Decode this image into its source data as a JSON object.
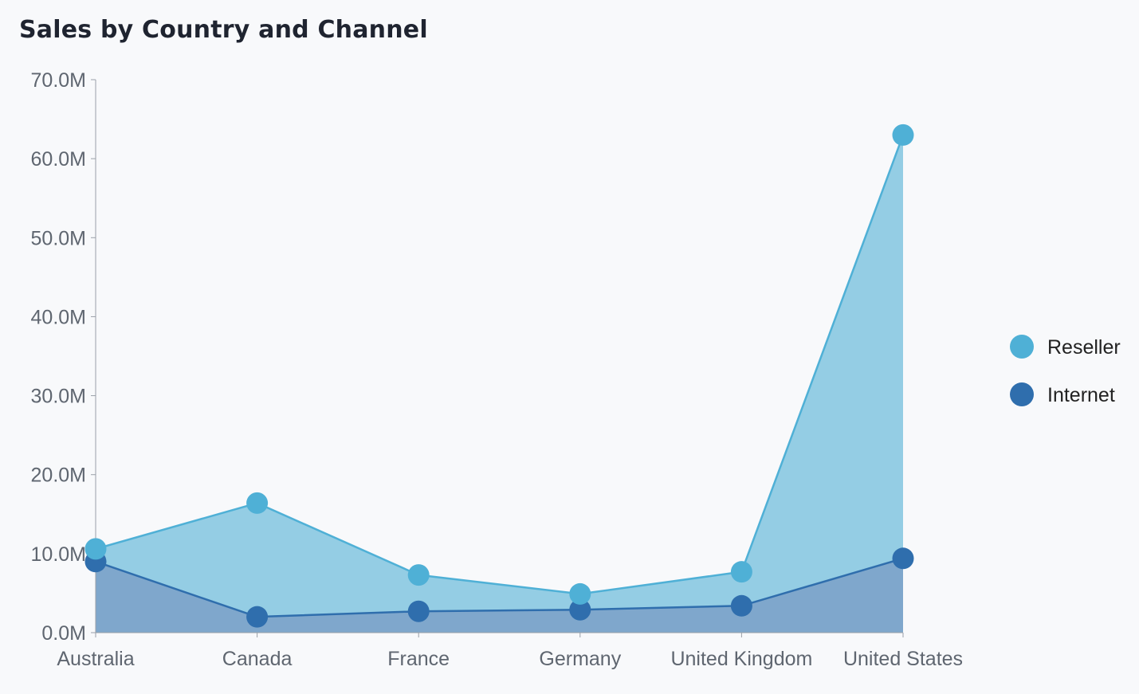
{
  "chart_data": {
    "type": "area",
    "title": "Sales by Country and Channel",
    "categories": [
      "Australia",
      "Canada",
      "France",
      "Germany",
      "United Kingdom",
      "United States"
    ],
    "series": [
      {
        "name": "Reseller",
        "color": "#4fb0d6",
        "fill": "#94cde4",
        "values": [
          10.6,
          16.4,
          7.3,
          4.9,
          7.7,
          63.0
        ]
      },
      {
        "name": "Internet",
        "color": "#2f6ead",
        "fill": "#7fa7cc",
        "values": [
          9.0,
          2.0,
          2.7,
          2.9,
          3.4,
          9.4
        ]
      }
    ],
    "y_ticks": [
      "0.0M",
      "10.0M",
      "20.0M",
      "30.0M",
      "40.0M",
      "50.0M",
      "60.0M",
      "70.0M"
    ],
    "ylim": [
      0,
      70
    ],
    "legend_position": "right",
    "grid": false
  }
}
